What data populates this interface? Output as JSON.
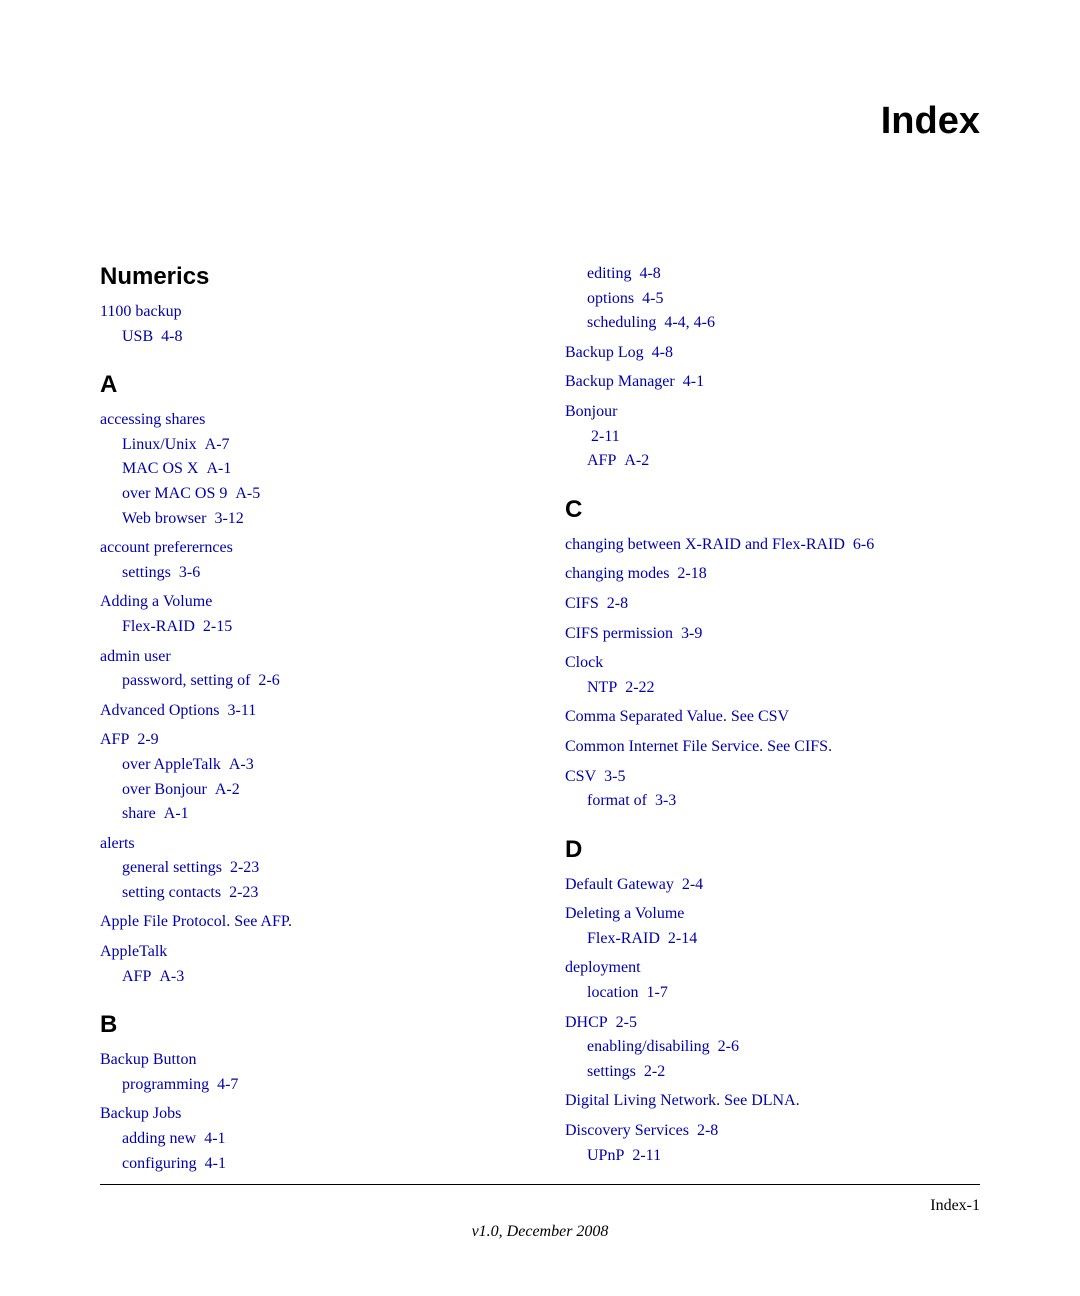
{
  "title": "Index",
  "footer": {
    "page_label": "Index-1",
    "version": "v1.0, December 2008"
  },
  "left_column": [
    {
      "letter": "Numerics",
      "groups": [
        {
          "main": "1100 backup",
          "subs": [
            {
              "text": "USB",
              "ref": "4-8"
            }
          ]
        }
      ]
    },
    {
      "letter": "A",
      "groups": [
        {
          "main": "accessing shares",
          "subs": [
            {
              "text": "Linux/Unix",
              "ref": "A-7"
            },
            {
              "text": "MAC OS X",
              "ref": "A-1"
            },
            {
              "text": "over MAC OS 9",
              "ref": "A-5"
            },
            {
              "text": "Web browser",
              "ref": "3-12"
            }
          ]
        },
        {
          "main": "account preferernces",
          "subs": [
            {
              "text": "settings",
              "ref": "3-6"
            }
          ]
        },
        {
          "main": "Adding a Volume",
          "subs": [
            {
              "text": "Flex-RAID",
              "ref": "2-15"
            }
          ]
        },
        {
          "main": "admin user",
          "subs": [
            {
              "text": "password, setting of",
              "ref": "2-6"
            }
          ]
        },
        {
          "main": "Advanced Options",
          "main_ref": "3-11",
          "subs": []
        },
        {
          "main": "AFP",
          "main_ref": "2-9",
          "subs": [
            {
              "text": "over AppleTalk",
              "ref": "A-3"
            },
            {
              "text": "over Bonjour",
              "ref": "A-2"
            },
            {
              "text": "share",
              "ref": "A-1"
            }
          ]
        },
        {
          "main": "alerts",
          "subs": [
            {
              "text": "general settings",
              "ref": "2-23"
            },
            {
              "text": "setting contacts",
              "ref": "2-23"
            }
          ]
        },
        {
          "main": "Apple File Protocol. See AFP.",
          "subs": []
        },
        {
          "main": "AppleTalk",
          "subs": [
            {
              "text": "AFP",
              "ref": "A-3"
            }
          ]
        }
      ]
    },
    {
      "letter": "B",
      "groups": [
        {
          "main": "Backup Button",
          "subs": [
            {
              "text": "programming",
              "ref": "4-7"
            }
          ]
        },
        {
          "main": "Backup Jobs",
          "subs": [
            {
              "text": "adding new",
              "ref": "4-1"
            },
            {
              "text": "configuring",
              "ref": "4-1"
            }
          ]
        }
      ]
    }
  ],
  "right_column": [
    {
      "letter": "",
      "groups": [
        {
          "main": "",
          "subs": [
            {
              "text": "editing",
              "ref": "4-8"
            },
            {
              "text": "options",
              "ref": "4-5"
            },
            {
              "text": "scheduling",
              "ref": "4-4, 4-6"
            }
          ]
        },
        {
          "main": "Backup Log",
          "main_ref": "4-8",
          "subs": []
        },
        {
          "main": "Backup Manager",
          "main_ref": "4-1",
          "subs": []
        },
        {
          "main": "Bonjour",
          "subs": [
            {
              "text": "",
              "ref": "2-11"
            },
            {
              "text": "AFP",
              "ref": "A-2"
            }
          ]
        }
      ]
    },
    {
      "letter": "C",
      "groups": [
        {
          "main": "changing between X-RAID and Flex-RAID",
          "main_ref": "6-6",
          "subs": []
        },
        {
          "main": "changing modes",
          "main_ref": "2-18",
          "subs": []
        },
        {
          "main": "CIFS",
          "main_ref": "2-8",
          "subs": []
        },
        {
          "main": "CIFS permission",
          "main_ref": "3-9",
          "subs": []
        },
        {
          "main": "Clock",
          "subs": [
            {
              "text": "NTP",
              "ref": "2-22"
            }
          ]
        },
        {
          "main": "Comma Separated Value. See CSV",
          "subs": []
        },
        {
          "main": "Common Internet File Service. See CIFS.",
          "subs": []
        },
        {
          "main": "CSV",
          "main_ref": "3-5",
          "subs": [
            {
              "text": "format of",
              "ref": "3-3"
            }
          ]
        }
      ]
    },
    {
      "letter": "D",
      "groups": [
        {
          "main": "Default Gateway",
          "main_ref": "2-4",
          "subs": []
        },
        {
          "main": "Deleting a Volume",
          "subs": [
            {
              "text": "Flex-RAID",
              "ref": "2-14"
            }
          ]
        },
        {
          "main": "deployment",
          "subs": [
            {
              "text": "location",
              "ref": "1-7"
            }
          ]
        },
        {
          "main": "DHCP",
          "main_ref": "2-5",
          "subs": [
            {
              "text": "enabling/disabiling",
              "ref": "2-6"
            },
            {
              "text": "settings",
              "ref": "2-2"
            }
          ]
        },
        {
          "main": "Digital Living Network. See DLNA.",
          "subs": []
        },
        {
          "main": "Discovery Services",
          "main_ref": "2-8",
          "subs": [
            {
              "text": "UPnP",
              "ref": "2-11"
            }
          ]
        }
      ]
    }
  ]
}
